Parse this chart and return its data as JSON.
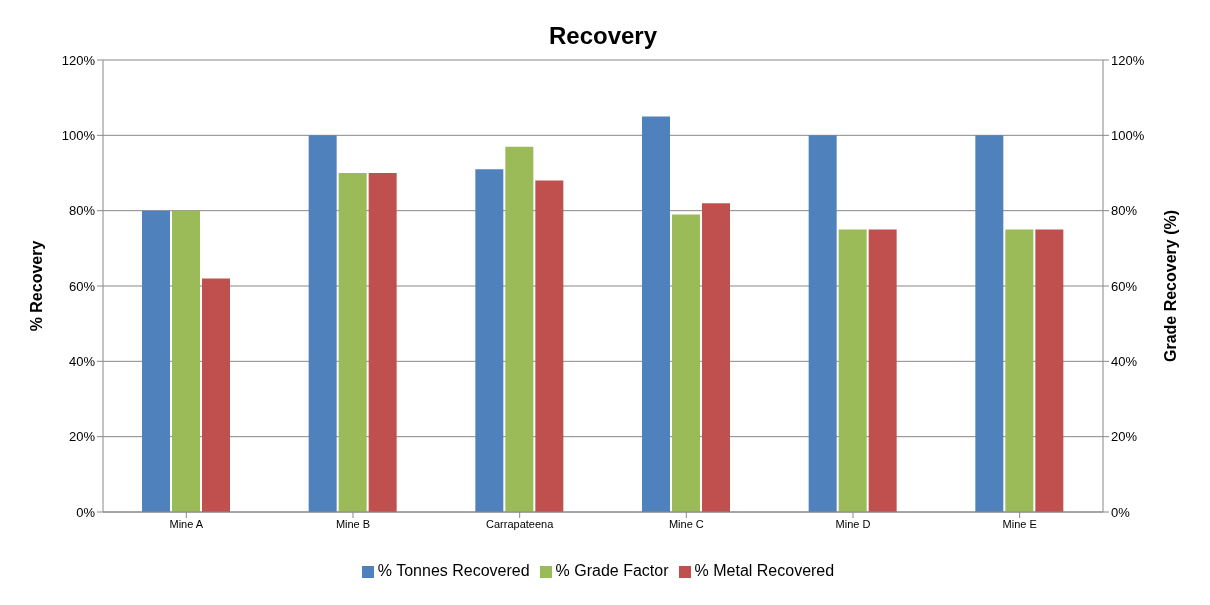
{
  "chart_data": {
    "type": "bar",
    "title": "Recovery",
    "ylabel": "% Recovery",
    "y2label": "Grade Recovery (%)",
    "categories": [
      "Mine A",
      "Mine B",
      "Carrapateena",
      "Mine C",
      "Mine D",
      "Mine E"
    ],
    "series": [
      {
        "name": "% Tonnes Recovered",
        "color": "#4f81bd",
        "values": [
          80,
          100,
          91,
          105,
          100,
          100
        ]
      },
      {
        "name": "% Grade Factor",
        "color": "#9bbb59",
        "values": [
          80,
          90,
          97,
          79,
          75,
          75
        ]
      },
      {
        "name": "% Metal Recovered",
        "color": "#c0504d",
        "values": [
          62,
          90,
          88,
          82,
          75,
          75
        ]
      }
    ],
    "ylim": [
      0,
      120
    ],
    "yticks": [
      {
        "value": 0,
        "label": "0%"
      },
      {
        "value": 20,
        "label": "20%"
      },
      {
        "value": 40,
        "label": "40%"
      },
      {
        "value": 60,
        "label": "60%"
      },
      {
        "value": 80,
        "label": "80%"
      },
      {
        "value": 100,
        "label": "100%"
      },
      {
        "value": 120,
        "label": "120%"
      }
    ],
    "y2lim": [
      0,
      120
    ],
    "y2ticks": [
      {
        "value": 0,
        "label": "0%"
      },
      {
        "value": 20,
        "label": "20%"
      },
      {
        "value": 40,
        "label": "40%"
      },
      {
        "value": 60,
        "label": "60%"
      },
      {
        "value": 80,
        "label": "80%"
      },
      {
        "value": 100,
        "label": "100%"
      },
      {
        "value": 120,
        "label": "120%"
      }
    ],
    "grid": "y",
    "legend": "bottom"
  }
}
